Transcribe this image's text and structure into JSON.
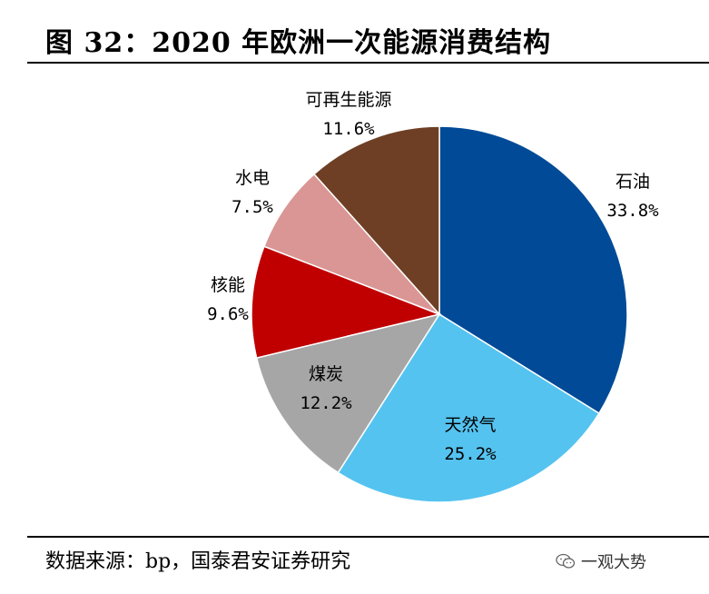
{
  "title": "图 32：2020 年欧洲一次能源消费结构",
  "source": "数据来源：bp，国泰君安证券研究",
  "watermark": {
    "text": "一观大势"
  },
  "chart_data": {
    "type": "pie",
    "title": "2020 年欧洲一次能源消费结构",
    "slices": [
      {
        "name": "石油",
        "value": 33.8,
        "label": "33.8%",
        "color": "#004A97"
      },
      {
        "name": "天然气",
        "value": 25.2,
        "label": "25.2%",
        "color": "#55C3F0"
      },
      {
        "name": "煤炭",
        "value": 12.2,
        "label": "12.2%",
        "color": "#A6A6A6"
      },
      {
        "name": "核能",
        "value": 9.6,
        "label": "9.6%",
        "color": "#C00000"
      },
      {
        "name": "水电",
        "value": 7.5,
        "label": "7.5%",
        "color": "#DA9694"
      },
      {
        "name": "可再生能源",
        "value": 11.6,
        "label": "11.6%",
        "color": "#6E3F24"
      }
    ]
  }
}
